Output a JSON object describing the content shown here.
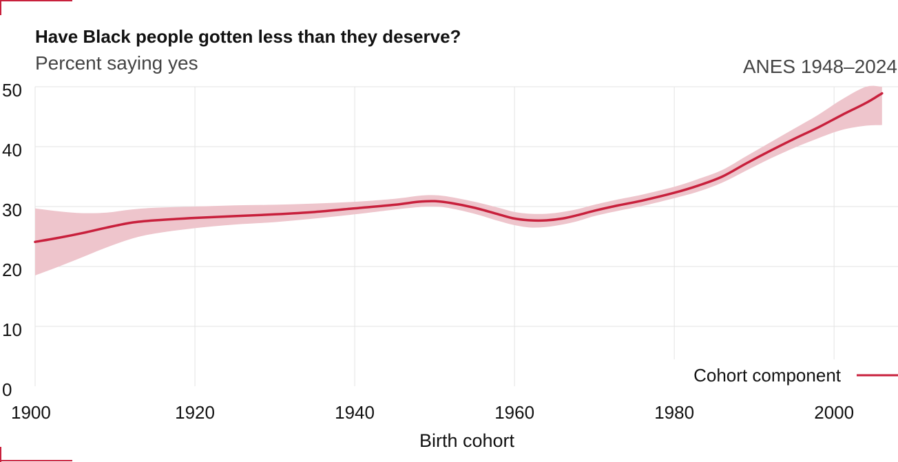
{
  "chart_data": {
    "type": "line",
    "title": "Have Black people gotten less than they deserve?",
    "subtitle": "Percent saying yes",
    "source": "ANES 1948–2024",
    "xlabel": "Birth cohort",
    "ylabel": "",
    "xlim": [
      1900,
      2008
    ],
    "ylim": [
      0,
      50
    ],
    "x_ticks": [
      1900,
      1920,
      1940,
      1960,
      1980,
      2000
    ],
    "y_ticks": [
      0,
      10,
      20,
      30,
      40,
      50
    ],
    "grid": true,
    "legend_position": "bottom-right",
    "colors": {
      "line": "#c8203c",
      "band": "#eec5cc",
      "grid": "#e3e3e3",
      "accent": "#c8203c"
    },
    "series": [
      {
        "name": "Cohort component",
        "x": [
          1900,
          1903,
          1906,
          1909,
          1912,
          1915,
          1920,
          1925,
          1930,
          1935,
          1940,
          1945,
          1948,
          1950,
          1952,
          1955,
          1958,
          1960,
          1962,
          1964,
          1966,
          1968,
          1970,
          1973,
          1976,
          1980,
          1983,
          1986,
          1989,
          1992,
          1995,
          1998,
          2001,
          2004,
          2006
        ],
        "values": [
          24.1,
          24.8,
          25.6,
          26.5,
          27.3,
          27.7,
          28.1,
          28.4,
          28.7,
          29.1,
          29.7,
          30.3,
          30.8,
          30.9,
          30.6,
          29.8,
          28.7,
          28.0,
          27.7,
          27.7,
          28.0,
          28.6,
          29.3,
          30.2,
          31.0,
          32.3,
          33.5,
          35.0,
          37.2,
          39.3,
          41.3,
          43.2,
          45.3,
          47.3,
          48.9
        ],
        "lower": [
          18.5,
          20.0,
          21.6,
          23.2,
          24.6,
          25.5,
          26.4,
          27.0,
          27.4,
          28.0,
          28.7,
          29.5,
          29.9,
          30.0,
          29.7,
          28.8,
          27.6,
          26.9,
          26.5,
          26.6,
          27.0,
          27.6,
          28.4,
          29.3,
          30.1,
          31.4,
          32.5,
          34.0,
          36.0,
          38.0,
          39.8,
          41.4,
          42.8,
          43.5,
          43.6
        ],
        "upper": [
          29.7,
          29.2,
          28.9,
          29.0,
          29.5,
          29.8,
          30.0,
          30.2,
          30.3,
          30.5,
          30.8,
          31.3,
          31.8,
          31.9,
          31.6,
          30.8,
          29.8,
          29.1,
          28.8,
          28.8,
          29.1,
          29.6,
          30.3,
          31.2,
          32.0,
          33.3,
          34.6,
          36.1,
          38.4,
          40.7,
          43.0,
          45.3,
          47.9,
          50.0,
          50.0
        ]
      }
    ]
  }
}
